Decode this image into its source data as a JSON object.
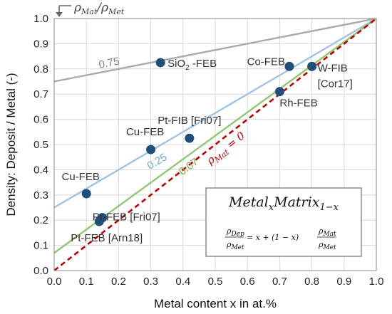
{
  "chart_data": {
    "type": "scatter",
    "xlabel": "Metal content x in at.%",
    "ylabel": "Density: Deposit / Metal (-)",
    "xlim": [
      0,
      1
    ],
    "ylim": [
      0,
      1
    ],
    "x_ticks": [
      "0.0",
      "0.1",
      "0.2",
      "0.3",
      "0.4",
      "0.5",
      "0.6",
      "0.7",
      "0.8",
      "0.9",
      "1.0"
    ],
    "y_ticks": [
      "0.0",
      "0.1",
      "0.2",
      "0.3",
      "0.4",
      "0.5",
      "0.6",
      "0.7",
      "0.8",
      "0.9",
      "1.0"
    ],
    "grid": true,
    "corner_label": "ρMat/ρMet",
    "reference_lines": [
      {
        "label": "0.75",
        "ratio": 0.75,
        "color": "#aaaaaa",
        "dashed": false
      },
      {
        "label": "0.25",
        "ratio": 0.25,
        "color": "#9fc3e6",
        "dashed": false
      },
      {
        "label": "0.07",
        "ratio": 0.07,
        "color": "#90c870",
        "dashed": false
      },
      {
        "label": "ρMat = 0",
        "ratio": 0.0,
        "color": "#c00000",
        "dashed": true
      }
    ],
    "points": [
      {
        "label": "SiO2 -FEB",
        "x": 0.33,
        "y": 0.825
      },
      {
        "label": "Co-FEB",
        "x": 0.73,
        "y": 0.81
      },
      {
        "label": "W-FIB [Cor17]",
        "x": 0.8,
        "y": 0.81
      },
      {
        "label": "Rh-FEB",
        "x": 0.7,
        "y": 0.71
      },
      {
        "label": "Pt-FIB [Fri07]",
        "x": 0.42,
        "y": 0.525
      },
      {
        "label": "Cu-FEB",
        "x": 0.3,
        "y": 0.48
      },
      {
        "label": "Cu-FEB",
        "x": 0.1,
        "y": 0.305
      },
      {
        "label": "Pt-FEB [Fri07]",
        "x": 0.15,
        "y": 0.21
      },
      {
        "label": "Pt-FEB [Arn18]",
        "x": 0.14,
        "y": 0.195
      }
    ],
    "point_color": "#1f4e79",
    "formula": {
      "title": "MetalxMatrix1−x",
      "equation": "ρDep/ρMet = x + (1 − x) ρMat/ρMet"
    }
  }
}
